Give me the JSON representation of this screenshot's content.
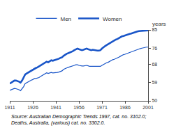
{
  "chart_data": {
    "type": "line",
    "ylabel": "years",
    "annotations": [
      "Source: Australian Demographic Trends 1997, cat. no. 3102.0;\nDeaths, Australia, (various) cat. no. 3302.0."
    ],
    "x": [
      1911,
      1912,
      1913,
      1914,
      1915,
      1916,
      1917,
      1918,
      1919,
      1920,
      1921,
      1922,
      1923,
      1924,
      1925,
      1926,
      1927,
      1928,
      1929,
      1930,
      1931,
      1932,
      1933,
      1934,
      1935,
      1936,
      1937,
      1938,
      1939,
      1940,
      1941,
      1942,
      1943,
      1944,
      1945,
      1946,
      1947,
      1948,
      1949,
      1950,
      1951,
      1952,
      1953,
      1954,
      1955,
      1956,
      1957,
      1958,
      1959,
      1960,
      1961,
      1962,
      1963,
      1964,
      1965,
      1966,
      1967,
      1968,
      1969,
      1970,
      1971,
      1972,
      1973,
      1974,
      1975,
      1976,
      1977,
      1978,
      1979,
      1980,
      1981,
      1982,
      1983,
      1984,
      1985,
      1986,
      1987,
      1988,
      1989,
      1990,
      1991,
      1992,
      1993,
      1994,
      1995,
      1996,
      1997,
      1998,
      1999,
      2000,
      2001
    ],
    "series": [
      {
        "name": "Men",
        "color": "#1955c8",
        "values": [
          55.2,
          55.5,
          55.8,
          56.1,
          56.0,
          55.8,
          55.5,
          55.0,
          56.0,
          57.0,
          58.5,
          59.0,
          59.5,
          60.0,
          60.2,
          60.5,
          61.0,
          61.0,
          61.2,
          61.5,
          62.0,
          62.5,
          63.0,
          63.5,
          63.8,
          63.5,
          63.8,
          64.0,
          63.8,
          63.8,
          64.0,
          64.0,
          64.2,
          64.5,
          64.8,
          65.5,
          66.0,
          66.2,
          66.5,
          66.7,
          67.0,
          67.3,
          67.5,
          67.8,
          67.8,
          67.5,
          67.3,
          67.2,
          67.2,
          67.4,
          67.5,
          67.3,
          67.0,
          67.0,
          67.0,
          67.0,
          67.0,
          66.8,
          66.8,
          67.0,
          67.5,
          68.0,
          68.5,
          68.8,
          69.0,
          69.5,
          70.0,
          70.3,
          70.5,
          70.8,
          71.2,
          71.5,
          72.0,
          72.5,
          72.8,
          73.0,
          73.3,
          73.5,
          73.8,
          74.0,
          74.3,
          74.6,
          75.0,
          75.2,
          75.5,
          75.8,
          76.0,
          76.2,
          76.4,
          76.5,
          76.5
        ]
      },
      {
        "name": "Women",
        "color": "#1955c8",
        "values": [
          58.5,
          59.0,
          59.5,
          60.0,
          60.0,
          59.8,
          59.5,
          59.0,
          60.0,
          61.5,
          63.0,
          63.5,
          64.0,
          64.5,
          65.0,
          65.5,
          66.0,
          66.2,
          66.5,
          67.0,
          67.5,
          68.0,
          68.5,
          69.0,
          69.3,
          69.0,
          69.5,
          70.0,
          69.8,
          70.0,
          70.2,
          70.5,
          70.8,
          71.2,
          71.5,
          72.2,
          72.8,
          73.2,
          73.5,
          73.8,
          74.2,
          74.5,
          75.0,
          75.5,
          75.8,
          75.5,
          75.2,
          75.0,
          75.2,
          75.5,
          75.8,
          75.5,
          75.2,
          75.0,
          75.2,
          75.0,
          75.0,
          74.8,
          74.8,
          75.0,
          75.8,
          76.5,
          77.0,
          77.5,
          78.0,
          78.5,
          79.0,
          79.5,
          79.8,
          80.2,
          80.5,
          81.0,
          81.5,
          81.8,
          82.0,
          82.3,
          82.5,
          82.8,
          83.0,
          83.2,
          83.5,
          83.8,
          84.0,
          84.2,
          84.4,
          84.5,
          84.6,
          84.7,
          84.8,
          84.8,
          84.8
        ]
      }
    ],
    "xlim": [
      1911,
      2001
    ],
    "ylim": [
      50,
      85
    ],
    "xticks": [
      1911,
      1926,
      1941,
      1956,
      1971,
      1986,
      2001
    ],
    "yticks": [
      50,
      59,
      68,
      76,
      85
    ],
    "grid": false,
    "legend": "top"
  }
}
